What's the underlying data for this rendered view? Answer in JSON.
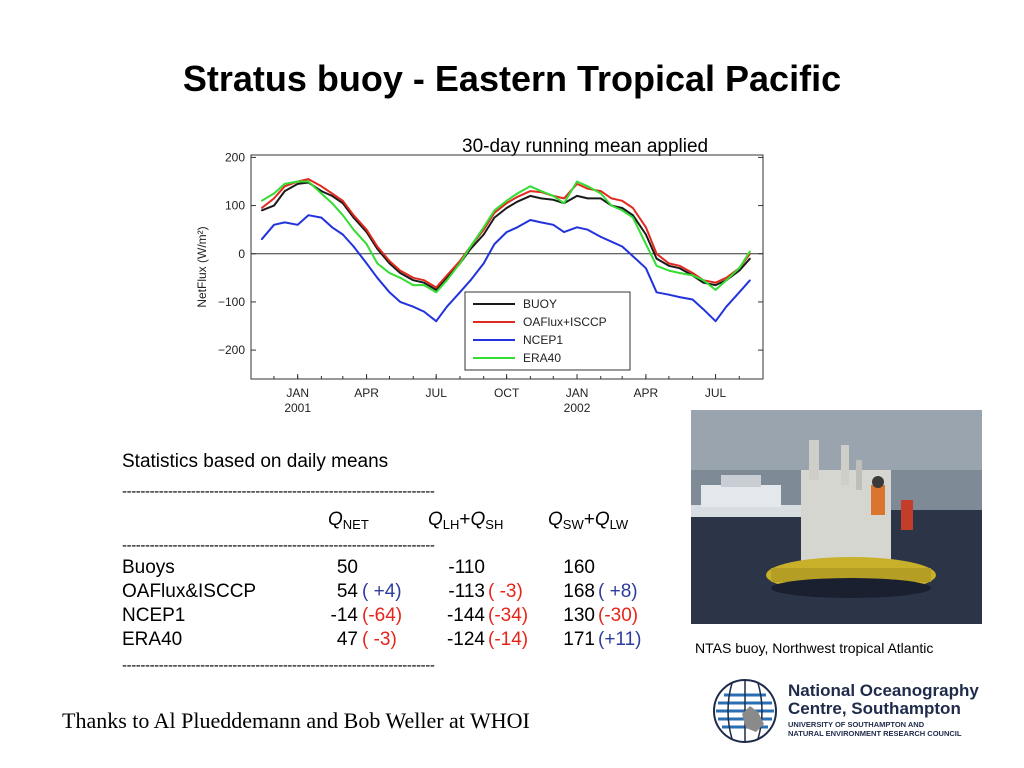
{
  "title": "Stratus buoy - Eastern Tropical Pacific",
  "subtitle": "30-day running mean applied",
  "chart_data": {
    "type": "line",
    "ylabel": "NetFlux (W/m²)",
    "ylim": [
      -260,
      205
    ],
    "yticks": [
      200,
      100,
      0,
      -100,
      -200
    ],
    "ytick_labels": [
      "200",
      "100",
      "0",
      "−100",
      "−200"
    ],
    "x_range": [
      "2000-11-01",
      "2002-09-01"
    ],
    "xticks": [
      {
        "date": "2001-01-01",
        "label": "JAN",
        "year": "2001"
      },
      {
        "date": "2001-04-01",
        "label": "APR",
        "year": ""
      },
      {
        "date": "2001-07-01",
        "label": "JUL",
        "year": ""
      },
      {
        "date": "2001-10-01",
        "label": "OCT",
        "year": ""
      },
      {
        "date": "2002-01-01",
        "label": "JAN",
        "year": "2002"
      },
      {
        "date": "2002-04-01",
        "label": "APR",
        "year": ""
      },
      {
        "date": "2002-07-01",
        "label": "JUL",
        "year": ""
      }
    ],
    "zero_line": true,
    "legend_position": "bottom-right",
    "x": [
      "2000-11-15",
      "2000-12-01",
      "2000-12-15",
      "2001-01-01",
      "2001-01-15",
      "2001-02-01",
      "2001-02-15",
      "2001-03-01",
      "2001-03-15",
      "2001-04-01",
      "2001-04-15",
      "2001-05-01",
      "2001-05-15",
      "2001-06-01",
      "2001-06-15",
      "2001-07-01",
      "2001-07-15",
      "2001-08-01",
      "2001-08-15",
      "2001-09-01",
      "2001-09-15",
      "2001-10-01",
      "2001-10-15",
      "2001-11-01",
      "2001-11-15",
      "2001-12-01",
      "2001-12-15",
      "2002-01-01",
      "2002-01-15",
      "2002-02-01",
      "2002-02-15",
      "2002-03-01",
      "2002-03-15",
      "2002-04-01",
      "2002-04-15",
      "2002-05-01",
      "2002-05-15",
      "2002-06-01",
      "2002-06-15",
      "2002-07-01",
      "2002-07-15",
      "2002-08-01",
      "2002-08-15"
    ],
    "series": [
      {
        "name": "BUOY",
        "color": "#1a1a1a",
        "values": [
          90,
          100,
          130,
          145,
          148,
          130,
          120,
          105,
          75,
          45,
          10,
          -20,
          -40,
          -55,
          -60,
          -75,
          -50,
          -20,
          10,
          40,
          75,
          95,
          108,
          120,
          115,
          112,
          105,
          120,
          115,
          115,
          100,
          95,
          80,
          40,
          -10,
          -25,
          -30,
          -45,
          -60,
          -65,
          -55,
          -35,
          -10
        ]
      },
      {
        "name": "OAFlux+ISCCP",
        "color": "#e02a1f",
        "values": [
          95,
          115,
          140,
          150,
          155,
          140,
          125,
          110,
          80,
          50,
          15,
          -15,
          -35,
          -50,
          -55,
          -70,
          -45,
          -15,
          15,
          50,
          85,
          105,
          118,
          130,
          128,
          120,
          115,
          145,
          135,
          130,
          115,
          110,
          95,
          55,
          0,
          -20,
          -25,
          -40,
          -55,
          -60,
          -50,
          -30,
          0
        ]
      },
      {
        "name": "NCEP1",
        "color": "#2233dd",
        "values": [
          30,
          60,
          65,
          60,
          80,
          75,
          55,
          40,
          15,
          -20,
          -50,
          -80,
          -100,
          -110,
          -120,
          -140,
          -110,
          -80,
          -55,
          -20,
          20,
          45,
          55,
          70,
          65,
          60,
          45,
          55,
          50,
          35,
          25,
          15,
          -5,
          -30,
          -80,
          -85,
          -90,
          -95,
          -115,
          -140,
          -110,
          -80,
          -55
        ]
      },
      {
        "name": "ERA40",
        "color": "#33dd33",
        "values": [
          110,
          125,
          145,
          150,
          150,
          125,
          105,
          80,
          50,
          20,
          -20,
          -40,
          -50,
          -65,
          -65,
          -80,
          -55,
          -20,
          15,
          55,
          90,
          110,
          125,
          140,
          130,
          120,
          105,
          150,
          140,
          125,
          100,
          90,
          75,
          20,
          -25,
          -35,
          -40,
          -45,
          -55,
          -75,
          -55,
          -30,
          5
        ]
      }
    ]
  },
  "stats": {
    "heading": "Statistics based on daily means",
    "divider": "--------------------------------------------------------------------",
    "headers": {
      "net_italic": "Q",
      "net_sub": "NET",
      "lhsh_italic1": "Q",
      "lhsh_sub1": "LH",
      "lhsh_plus": "+",
      "lhsh_italic2": "Q",
      "lhsh_sub2": "SH",
      "swlw_italic1": "Q",
      "swlw_sub1": "SW",
      "swlw_plus": "+",
      "swlw_italic2": "Q",
      "swlw_sub2": "LW"
    },
    "rows": [
      {
        "name": "Buoys",
        "net": "50",
        "net_diff": "",
        "lhsh": "-110",
        "lhsh_diff": "",
        "swlw": "160",
        "swlw_diff": ""
      },
      {
        "name": "OAFlux&ISCCP",
        "net": "54",
        "net_diff": "( +4)",
        "lhsh": "-113",
        "lhsh_diff": "( -3)",
        "swlw": "168",
        "swlw_diff": "( +8)"
      },
      {
        "name": "NCEP1",
        "net": "-14",
        "net_diff": "(-64)",
        "lhsh": "-144",
        "lhsh_diff": "(-34)",
        "swlw": "130",
        "swlw_diff": "(-30)"
      },
      {
        "name": "ERA40",
        "net": "47",
        "net_diff": "( -3)",
        "lhsh": "-124",
        "lhsh_diff": "(-14)",
        "swlw": "171",
        "swlw_diff": "(+11)"
      }
    ]
  },
  "thanks": "Thanks to Al Plueddemann and  Bob Weller at WHOI",
  "photo_caption": "NTAS buoy, Northwest tropical Atlantic",
  "logo": {
    "line1": "National Oceanography",
    "line2": "Centre, Southampton",
    "line3": "UNIVERSITY OF SOUTHAMPTON AND",
    "line4": "NATURAL ENVIRONMENT RESEARCH COUNCIL"
  },
  "colors": {
    "red_diff": "#e8241a",
    "blue_diff": "#2c3c9c",
    "navy": "#1f2b4a"
  }
}
